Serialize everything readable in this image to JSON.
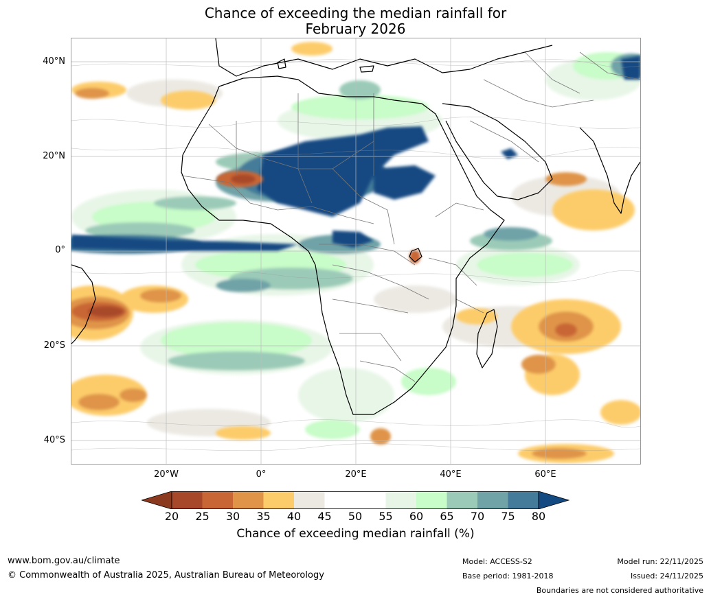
{
  "title": {
    "line1": "Chance of exceeding the median rainfall for",
    "line2": "February 2026"
  },
  "map": {
    "lat_labels": [
      "40°N",
      "20°N",
      "0°",
      "20°S",
      "40°S"
    ],
    "lon_labels": [
      "20°W",
      "0°",
      "20°E",
      "40°E",
      "60°E"
    ]
  },
  "colorbar": {
    "ticks": [
      "20",
      "25",
      "30",
      "35",
      "40",
      "45",
      "50",
      "55",
      "60",
      "65",
      "70",
      "75",
      "80"
    ],
    "colors": {
      "below_20": "#8c3a1f",
      "c20_25": "#a8482a",
      "c25_30": "#c96636",
      "c30_35": "#df9448",
      "c35_40": "#fdcc6a",
      "c40_45": "#ece9e3",
      "c45_50": "#ffffff",
      "c50_55": "#ffffff",
      "c55_60": "#e6f5e6",
      "c60_65": "#c8fcc8",
      "c65_70": "#9bcbb8",
      "c70_75": "#6fa3a8",
      "c75_80": "#457b9a",
      "above_80": "#134a82"
    },
    "label": "Chance of exceeding median rainfall (%)"
  },
  "footer": {
    "website": "www.bom.gov.au/climate",
    "copyright": "© Commonwealth of Australia 2025, Australian Bureau of Meteorology",
    "model": "Model: ACCESS-S2",
    "base_period": "Base period: 1981-2018",
    "model_run": "Model run: 22/11/2025",
    "issued": "Issued: 24/11/2025",
    "disclaimer": "Boundaries are not considered authoritative"
  }
}
